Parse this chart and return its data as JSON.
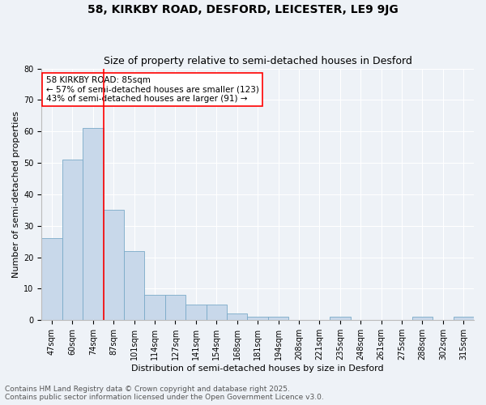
{
  "title1": "58, KIRKBY ROAD, DESFORD, LEICESTER, LE9 9JG",
  "title2": "Size of property relative to semi-detached houses in Desford",
  "xlabel": "Distribution of semi-detached houses by size in Desford",
  "ylabel": "Number of semi-detached properties",
  "categories": [
    "47sqm",
    "60sqm",
    "74sqm",
    "87sqm",
    "101sqm",
    "114sqm",
    "127sqm",
    "141sqm",
    "154sqm",
    "168sqm",
    "181sqm",
    "194sqm",
    "208sqm",
    "221sqm",
    "235sqm",
    "248sqm",
    "261sqm",
    "275sqm",
    "288sqm",
    "302sqm",
    "315sqm"
  ],
  "values": [
    26,
    51,
    61,
    35,
    22,
    8,
    8,
    5,
    5,
    2,
    1,
    1,
    0,
    0,
    1,
    0,
    0,
    0,
    1,
    0,
    1
  ],
  "bar_color": "#c8d8ea",
  "bar_edge_color": "#7aaac8",
  "red_line_color": "red",
  "red_line_x": 2.5,
  "annotation_text_line1": "58 KIRKBY ROAD: 85sqm",
  "annotation_text_line2": "← 57% of semi-detached houses are smaller (123)",
  "annotation_text_line3": "43% of semi-detached houses are larger (91) →",
  "annotation_box_color": "white",
  "annotation_box_edge_color": "red",
  "ylim": [
    0,
    80
  ],
  "yticks": [
    0,
    10,
    20,
    30,
    40,
    50,
    60,
    70,
    80
  ],
  "footnote1": "Contains HM Land Registry data © Crown copyright and database right 2025.",
  "footnote2": "Contains public sector information licensed under the Open Government Licence v3.0.",
  "bg_color": "#eef2f7",
  "plot_bg_color": "#eef2f7",
  "grid_color": "#ffffff",
  "title1_fontsize": 10,
  "title2_fontsize": 9,
  "footnote_fontsize": 6.5,
  "axis_label_fontsize": 8,
  "tick_fontsize": 7,
  "annotation_fontsize": 7.5
}
